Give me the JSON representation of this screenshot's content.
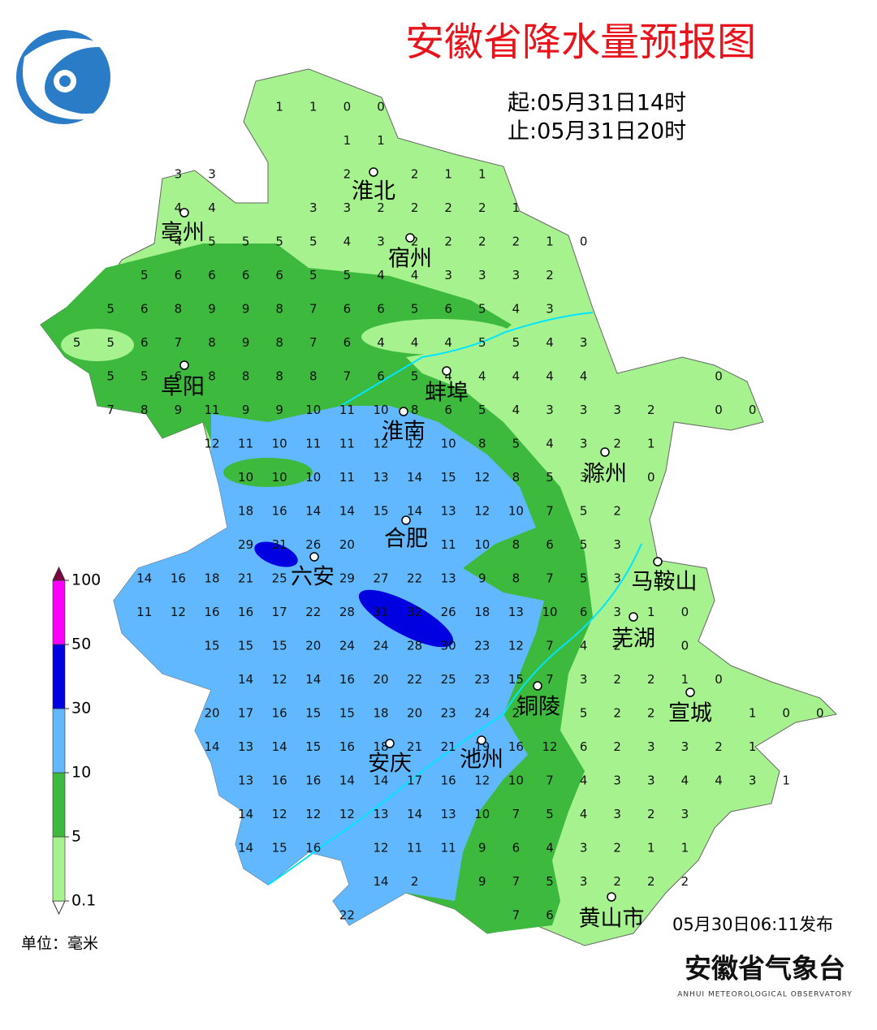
{
  "title": "安徽省降水量预报图",
  "start": "起:05月31日14时",
  "end": "止:05月31日20时",
  "legend": {
    "unit": "单位：毫米",
    "ticks": [
      0.1,
      5,
      10,
      30,
      50,
      100
    ],
    "colors": [
      "#a6f28f",
      "#3dba3d",
      "#61b8ff",
      "#0000e1",
      "#fa00fa"
    ],
    "over_color": "#810040"
  },
  "cities": [
    "淮北",
    "亳州",
    "宿州",
    "阜阳",
    "蚌埠",
    "淮南",
    "滁州",
    "合肥",
    "六安",
    "马鞍山",
    "芜湖",
    "铜陵",
    "宣城",
    "安庆",
    "池州",
    "黄山市"
  ],
  "issued": "05月30日06:11发布",
  "organization": "安徽省气象台",
  "organization_en": "ANHUI METEOROLOGICAL OBSERVATORY",
  "grid": {
    "rows": [
      [
        null,
        null,
        null,
        null,
        null,
        null,
        null,
        1,
        1,
        0,
        0
      ],
      [
        null,
        null,
        null,
        null,
        null,
        null,
        null,
        null,
        null,
        1,
        1
      ],
      [
        null,
        null,
        null,
        null,
        3,
        3,
        null,
        null,
        null,
        2,
        null,
        2,
        1,
        1
      ],
      [
        null,
        null,
        null,
        null,
        4,
        4,
        null,
        null,
        3,
        3,
        2,
        2,
        2,
        2,
        1
      ],
      [
        null,
        null,
        null,
        null,
        4,
        5,
        5,
        5,
        5,
        4,
        3,
        2,
        2,
        2,
        2,
        1,
        0
      ],
      [
        null,
        null,
        null,
        5,
        6,
        6,
        6,
        6,
        5,
        5,
        4,
        4,
        3,
        3,
        3,
        2
      ],
      [
        null,
        null,
        5,
        6,
        8,
        9,
        9,
        8,
        7,
        6,
        6,
        5,
        6,
        5,
        4,
        3
      ],
      [
        null,
        5,
        5,
        6,
        7,
        8,
        9,
        8,
        7,
        6,
        4,
        4,
        4,
        5,
        5,
        4,
        3
      ],
      [
        null,
        null,
        5,
        5,
        6,
        8,
        8,
        8,
        8,
        7,
        6,
        5,
        4,
        4,
        4,
        4,
        4,
        null,
        null,
        null,
        0
      ],
      [
        null,
        null,
        7,
        8,
        9,
        11,
        9,
        9,
        10,
        11,
        10,
        8,
        6,
        5,
        4,
        3,
        3,
        3,
        2,
        null,
        0,
        0
      ],
      [
        null,
        null,
        null,
        null,
        null,
        12,
        11,
        10,
        11,
        11,
        12,
        12,
        10,
        8,
        5,
        4,
        3,
        2,
        1
      ],
      [
        null,
        null,
        null,
        null,
        null,
        null,
        10,
        10,
        10,
        11,
        13,
        14,
        15,
        12,
        8,
        5,
        3,
        null,
        0
      ],
      [
        null,
        null,
        null,
        null,
        null,
        null,
        18,
        16,
        14,
        14,
        15,
        14,
        13,
        12,
        10,
        7,
        5,
        2
      ],
      [
        null,
        null,
        null,
        null,
        null,
        null,
        29,
        31,
        26,
        20,
        null,
        null,
        11,
        10,
        8,
        6,
        5,
        3
      ],
      [
        null,
        null,
        null,
        14,
        16,
        18,
        21,
        25,
        null,
        29,
        27,
        22,
        13,
        9,
        8,
        7,
        5,
        3
      ],
      [
        null,
        null,
        null,
        11,
        12,
        16,
        16,
        17,
        22,
        28,
        31,
        32,
        26,
        18,
        13,
        10,
        6,
        3,
        1,
        0
      ],
      [
        null,
        null,
        null,
        null,
        null,
        15,
        15,
        15,
        20,
        24,
        24,
        28,
        30,
        23,
        12,
        7,
        4,
        2,
        null,
        0
      ],
      [
        null,
        null,
        null,
        null,
        null,
        null,
        14,
        12,
        14,
        16,
        20,
        22,
        25,
        23,
        15,
        7,
        3,
        2,
        2,
        1,
        0
      ],
      [
        null,
        null,
        null,
        null,
        null,
        20,
        17,
        16,
        15,
        15,
        18,
        20,
        23,
        24,
        2,
        null,
        5,
        2,
        2,
        null,
        null,
        1,
        0,
        0
      ],
      [
        null,
        null,
        null,
        null,
        null,
        14,
        13,
        14,
        15,
        16,
        18,
        21,
        21,
        19,
        16,
        12,
        6,
        2,
        3,
        3,
        2,
        1
      ],
      [
        null,
        null,
        null,
        null,
        null,
        null,
        13,
        16,
        16,
        14,
        14,
        17,
        16,
        12,
        10,
        7,
        4,
        3,
        3,
        4,
        4,
        3,
        1
      ],
      [
        null,
        null,
        null,
        null,
        null,
        null,
        14,
        12,
        12,
        12,
        13,
        14,
        13,
        10,
        7,
        5,
        4,
        3,
        2,
        3
      ],
      [
        null,
        null,
        null,
        null,
        null,
        null,
        14,
        15,
        16,
        null,
        12,
        11,
        11,
        9,
        6,
        4,
        3,
        2,
        1,
        1
      ],
      [
        null,
        null,
        null,
        null,
        null,
        null,
        null,
        null,
        null,
        null,
        14,
        2,
        null,
        9,
        7,
        5,
        3,
        2,
        2,
        2
      ],
      [
        null,
        null,
        null,
        null,
        null,
        null,
        null,
        null,
        null,
        22,
        null,
        null,
        null,
        null,
        7,
        6
      ]
    ]
  }
}
